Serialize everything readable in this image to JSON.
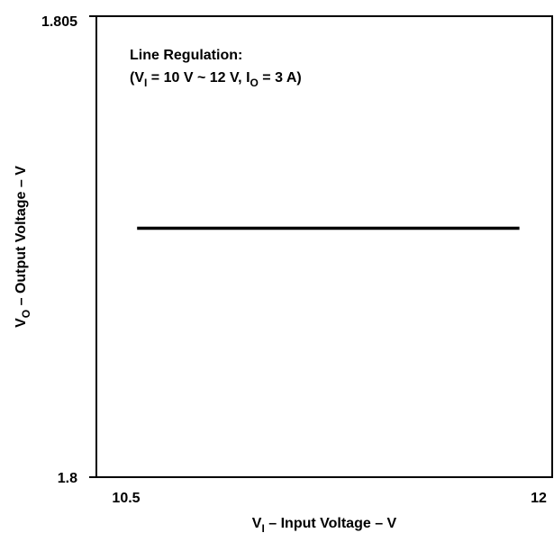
{
  "chart_data": {
    "type": "line",
    "xlabel": {
      "symbol": "V",
      "sub": "I",
      "rest": " – Input Voltage – V"
    },
    "ylabel": {
      "symbol": "V",
      "sub": "O",
      "rest": " – Output Voltage – V"
    },
    "xlim": [
      10.5,
      12
    ],
    "ylim": [
      1.8,
      1.805
    ],
    "x_tick_labels": [
      "10.5",
      "12"
    ],
    "y_tick_labels": [
      "1.8",
      "1.805"
    ],
    "grid": false,
    "annotation": {
      "line1": "Line Regulation:",
      "line2": {
        "p1": "(V",
        "sub1": "I",
        "p2": " = 10 V ~ 12 V, I",
        "sub2": "O",
        "p3": " = 3 A)"
      }
    },
    "series": [
      {
        "x": [
          10.54,
          11.93
        ],
        "y": [
          1.8027,
          1.8027
        ]
      }
    ],
    "line_color": "#000000"
  }
}
